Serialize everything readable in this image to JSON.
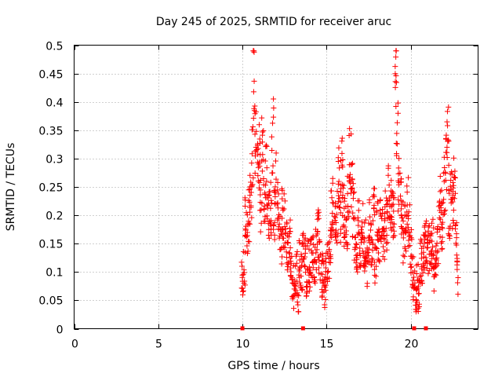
{
  "chart_data": {
    "type": "scatter",
    "title": "Day 245 of 2025, SRMTID for receiver aruc",
    "xlabel": "GPS time / hours",
    "ylabel": "SRMTID / TECUs",
    "xlim": [
      0,
      24
    ],
    "ylim": [
      0,
      0.5
    ],
    "x_ticks": [
      0,
      5,
      10,
      15,
      20
    ],
    "y_ticks": [
      0,
      0.05,
      0.1,
      0.15,
      0.2,
      0.25,
      0.3,
      0.35,
      0.4,
      0.45,
      0.5
    ],
    "x_tick_labels": [
      "0",
      "5",
      "10",
      "15",
      "20"
    ],
    "y_tick_labels": [
      "0",
      "0.05",
      "0.1",
      "0.15",
      "0.2",
      "0.25",
      "0.3",
      "0.35",
      "0.4",
      "0.45",
      "0.5"
    ],
    "grid": true,
    "marker": "+",
    "marker_color": "#ff0000",
    "series": [
      {
        "name": "SRMTID",
        "x": [
          10.0,
          10.1,
          10.2,
          10.3,
          10.4,
          10.5,
          10.6,
          10.7,
          10.8,
          10.9,
          11.0,
          11.1,
          11.2,
          11.3,
          11.4,
          11.5,
          11.6,
          11.7,
          11.8,
          11.9,
          12.0,
          12.1,
          12.2,
          12.3,
          12.4,
          12.5,
          12.6,
          12.7,
          12.8,
          12.9,
          13.0,
          13.1,
          13.2,
          13.3,
          13.4,
          13.5,
          13.6,
          13.7,
          13.8,
          13.9,
          14.0,
          14.1,
          14.2,
          14.3,
          14.4,
          14.5,
          14.6,
          14.7,
          14.8,
          14.9,
          15.0,
          15.1,
          15.2,
          15.3,
          15.4,
          15.5,
          15.6,
          15.7,
          15.8,
          15.9,
          16.0,
          16.1,
          16.2,
          16.3,
          16.4,
          16.5,
          16.6,
          16.7,
          16.8,
          16.9,
          17.0,
          17.1,
          17.2,
          17.3,
          17.4,
          17.5,
          17.6,
          17.7,
          17.8,
          17.9,
          18.0,
          18.1,
          18.2,
          18.3,
          18.4,
          18.5,
          18.6,
          18.7,
          18.8,
          18.9,
          19.0,
          19.1,
          19.2,
          19.3,
          19.4,
          19.5,
          19.6,
          19.7,
          19.8,
          19.9,
          20.0,
          20.1,
          20.2,
          20.3,
          20.4,
          20.5,
          20.6,
          20.7,
          20.8,
          20.9,
          21.0,
          21.1,
          21.2,
          21.3,
          21.4,
          21.5,
          21.6,
          21.7,
          21.8,
          21.9,
          22.0,
          22.1,
          22.2,
          22.3,
          22.4,
          22.5,
          22.6,
          22.7,
          22.8
        ],
        "y": [
          0.09,
          0.1,
          0.19,
          0.17,
          0.2,
          0.22,
          0.31,
          0.45,
          0.33,
          0.27,
          0.3,
          0.22,
          0.34,
          0.24,
          0.27,
          0.21,
          0.2,
          0.21,
          0.34,
          0.2,
          0.26,
          0.22,
          0.18,
          0.15,
          0.2,
          0.19,
          0.17,
          0.13,
          0.15,
          0.12,
          0.08,
          0.06,
          0.1,
          0.04,
          0.12,
          0.1,
          0.13,
          0.14,
          0.08,
          0.12,
          0.1,
          0.12,
          0.13,
          0.11,
          0.14,
          0.17,
          0.12,
          0.09,
          0.1,
          0.07,
          0.11,
          0.12,
          0.15,
          0.21,
          0.22,
          0.19,
          0.2,
          0.27,
          0.2,
          0.28,
          0.22,
          0.19,
          0.18,
          0.24,
          0.3,
          0.27,
          0.21,
          0.16,
          0.13,
          0.18,
          0.14,
          0.18,
          0.13,
          0.15,
          0.11,
          0.16,
          0.2,
          0.15,
          0.21,
          0.12,
          0.18,
          0.16,
          0.2,
          0.17,
          0.14,
          0.2,
          0.18,
          0.24,
          0.22,
          0.2,
          0.21,
          0.46,
          0.37,
          0.25,
          0.23,
          0.2,
          0.16,
          0.18,
          0.23,
          0.19,
          0.14,
          0.1,
          0.07,
          0.05,
          0.08,
          0.06,
          0.12,
          0.11,
          0.14,
          0.16,
          0.12,
          0.14,
          0.13,
          0.15,
          0.1,
          0.11,
          0.14,
          0.22,
          0.2,
          0.18,
          0.25,
          0.3,
          0.33,
          0.2,
          0.23,
          0.22,
          0.26,
          0.15,
          0.09
        ]
      }
    ],
    "data_gaps_x": [
      10.0,
      13.6,
      20.2,
      20.9
    ]
  }
}
